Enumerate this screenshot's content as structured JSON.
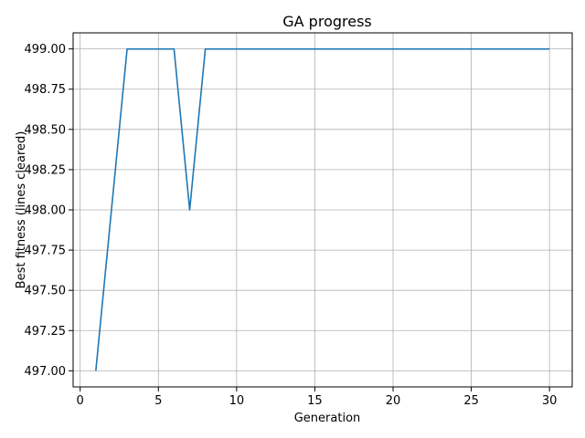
{
  "chart_data": {
    "type": "line",
    "title": "GA progress",
    "xlabel": "Generation",
    "ylabel": "Best fitness (lines cleared)",
    "xlim": [
      -0.45,
      31.45
    ],
    "ylim": [
      496.9,
      499.1
    ],
    "xticks": [
      0,
      5,
      10,
      15,
      20,
      25,
      30
    ],
    "xtick_labels": [
      "0",
      "5",
      "10",
      "15",
      "20",
      "25",
      "30"
    ],
    "yticks": [
      497.0,
      497.25,
      497.5,
      497.75,
      498.0,
      498.25,
      498.5,
      498.75,
      499.0
    ],
    "ytick_labels": [
      "497.00",
      "497.25",
      "497.50",
      "497.75",
      "498.00",
      "498.25",
      "498.50",
      "498.75",
      "499.00"
    ],
    "grid": true,
    "series": [
      {
        "color": "#1f77b4",
        "x": [
          1,
          2,
          3,
          4,
          5,
          6,
          7,
          8,
          9,
          10,
          11,
          12,
          13,
          14,
          15,
          16,
          17,
          18,
          19,
          20,
          21,
          22,
          23,
          24,
          25,
          26,
          27,
          28,
          29,
          30
        ],
        "y": [
          497,
          498,
          499,
          499,
          499,
          499,
          498,
          499,
          499,
          499,
          499,
          499,
          499,
          499,
          499,
          499,
          499,
          499,
          499,
          499,
          499,
          499,
          499,
          499,
          499,
          499,
          499,
          499,
          499,
          499
        ]
      }
    ]
  }
}
